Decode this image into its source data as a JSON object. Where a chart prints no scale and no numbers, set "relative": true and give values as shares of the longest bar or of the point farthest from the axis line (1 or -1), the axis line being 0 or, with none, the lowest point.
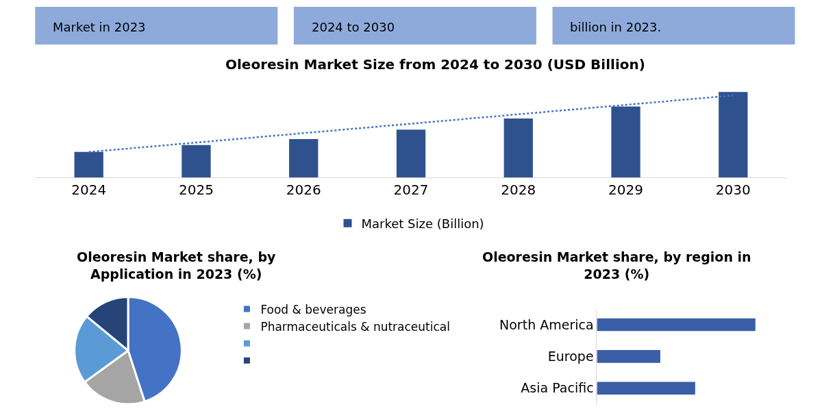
{
  "chart_data": [
    {
      "type": "other",
      "annotations": [
        "Market in 2023",
        "2024 to 2030",
        "billion in 2023."
      ],
      "color": "#8eaadb"
    },
    {
      "type": "bar",
      "title": "Oleoresin Market Size from 2024 to 2030 (USD Billion)",
      "categories": [
        "2024",
        "2025",
        "2026",
        "2027",
        "2028",
        "2029",
        "2030"
      ],
      "relative": true,
      "legend": "bottom",
      "series": [
        {
          "name": "Market Size (Billion)",
          "color": "#2f528f",
          "values": [
            0.3,
            0.38,
            0.45,
            0.56,
            0.69,
            0.83,
            1.0
          ]
        },
        {
          "type": "line",
          "line_style": "dotted",
          "color": "#4472c4",
          "values": [
            0.3,
            0.41,
            0.52,
            0.63,
            0.74,
            0.85,
            0.96
          ]
        }
      ]
    },
    {
      "type": "pie",
      "title": "Oleoresin Market share, by Application in 2023 (%)",
      "categories": [
        "Food & beverages",
        "Pharmaceuticals & nutraceutical",
        null,
        null
      ],
      "values": [
        45,
        20,
        21,
        14
      ],
      "colors": [
        "#4472c4",
        "#a5a5a5",
        "#5b9bd5",
        "#264478"
      ],
      "legend": "right"
    },
    {
      "type": "bar",
      "orientation": "horizontal",
      "title": "Oleoresin Market share, by region in 2023 (%)",
      "categories": [
        "North America",
        "Europe",
        "Asia Pacific"
      ],
      "relative": true,
      "values": [
        1.0,
        0.4,
        0.62
      ],
      "color": "#3a5fa8"
    }
  ]
}
